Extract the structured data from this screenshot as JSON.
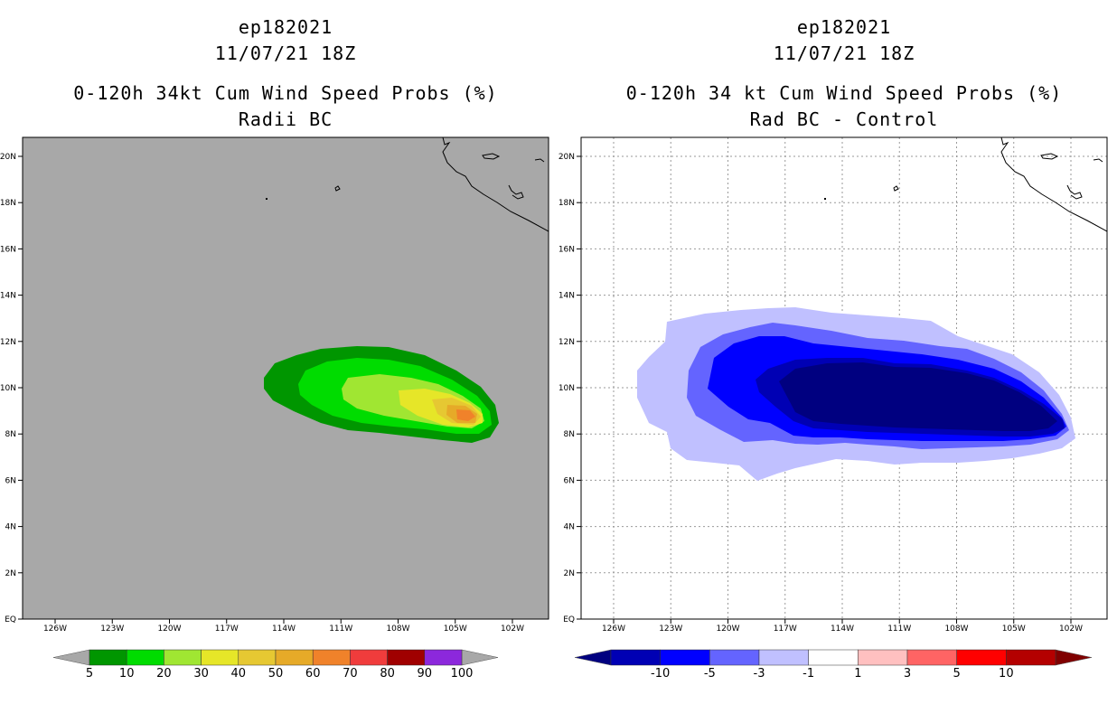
{
  "panels": [
    {
      "storm_id": "ep182021",
      "datetime": "11/07/21 18Z",
      "product": "0-120h 34kt Cum Wind Speed Probs (%)",
      "subtitle": "Radii BC",
      "background": "#a8a8a8",
      "colorbar": {
        "colors": [
          "#009600",
          "#00dc00",
          "#a0e632",
          "#e6e628",
          "#e6c832",
          "#e6aa28",
          "#f0822a",
          "#f03c3c",
          "#a00000",
          "#8c28dc"
        ],
        "end_color": "#a8a8a8",
        "labels": [
          "5",
          "10",
          "20",
          "30",
          "40",
          "50",
          "60",
          "70",
          "80",
          "90",
          "100"
        ]
      }
    },
    {
      "storm_id": "ep182021",
      "datetime": "11/07/21 18Z",
      "product": "0-120h 34 kt Cum Wind Speed Probs (%)",
      "subtitle": "Rad BC - Control",
      "background": "#ffffff",
      "colorbar": {
        "colors": [
          "#0000b4",
          "#0000ff",
          "#6464ff",
          "#c0c0ff",
          "#ffffff",
          "#ffc0c0",
          "#ff6464",
          "#ff0000",
          "#b40000"
        ],
        "low_end_color": "#000080",
        "high_end_color": "#800000",
        "labels": [
          "-10",
          "-5",
          "-3",
          "-1",
          "1",
          "3",
          "5",
          "10"
        ]
      }
    }
  ],
  "axes": {
    "lon_labels": [
      "126W",
      "123W",
      "120W",
      "117W",
      "114W",
      "111W",
      "108W",
      "105W",
      "102W"
    ],
    "lat_labels": [
      "EQ",
      "2N",
      "4N",
      "6N",
      "8N",
      "10N",
      "12N",
      "14N",
      "16N",
      "18N",
      "20N"
    ]
  }
}
